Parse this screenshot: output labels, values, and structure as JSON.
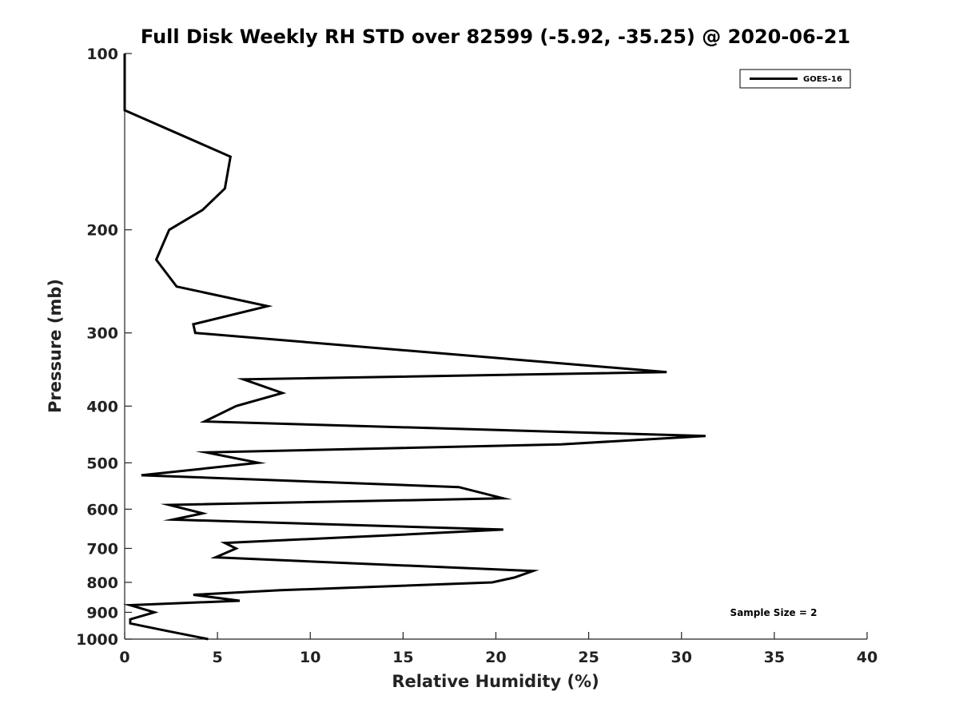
{
  "chart_data": {
    "type": "line",
    "title": "Full Disk Weekly RH STD over 82599 (-5.92, -35.25) @ 2020-06-21",
    "xlabel": "Relative Humidity (%)",
    "ylabel": "Pressure (mb)",
    "xlim": [
      0,
      40
    ],
    "ylim": [
      100,
      1000
    ],
    "y_scale": "log",
    "y_reversed": true,
    "grid": false,
    "xticks": [
      "0",
      "5",
      "10",
      "15",
      "20",
      "25",
      "30",
      "35",
      "40"
    ],
    "yticks": [
      "100",
      "200",
      "300",
      "400",
      "500",
      "600",
      "700",
      "800",
      "900",
      "1000"
    ],
    "legend": {
      "position": "top-right",
      "entries": [
        "GOES-16"
      ]
    },
    "annotation": "Sample Size = 2",
    "series": [
      {
        "name": "GOES-16",
        "color": "#000000",
        "points": [
          [
            0.0,
            100
          ],
          [
            0.0,
            125
          ],
          [
            5.7,
            150
          ],
          [
            5.4,
            170
          ],
          [
            4.2,
            185
          ],
          [
            2.4,
            200
          ],
          [
            1.7,
            225
          ],
          [
            2.8,
            250
          ],
          [
            7.7,
            270
          ],
          [
            3.7,
            290
          ],
          [
            3.8,
            300
          ],
          [
            29.2,
            350
          ],
          [
            6.4,
            360
          ],
          [
            8.5,
            380
          ],
          [
            6.0,
            400
          ],
          [
            4.3,
            425
          ],
          [
            31.3,
            450
          ],
          [
            23.5,
            465
          ],
          [
            4.4,
            480
          ],
          [
            7.2,
            500
          ],
          [
            0.9,
            525
          ],
          [
            18.0,
            550
          ],
          [
            20.4,
            575
          ],
          [
            2.4,
            590
          ],
          [
            4.2,
            610
          ],
          [
            2.6,
            625
          ],
          [
            20.4,
            650
          ],
          [
            14.2,
            665
          ],
          [
            5.4,
            685
          ],
          [
            6.0,
            700
          ],
          [
            4.9,
            725
          ],
          [
            11.3,
            740
          ],
          [
            22.0,
            765
          ],
          [
            21.0,
            785
          ],
          [
            19.8,
            800
          ],
          [
            8.4,
            825
          ],
          [
            3.7,
            840
          ],
          [
            6.2,
            860
          ],
          [
            0.3,
            875
          ],
          [
            1.6,
            900
          ],
          [
            0.3,
            925
          ],
          [
            0.3,
            940
          ],
          [
            1.0,
            950
          ],
          [
            2.4,
            970
          ],
          [
            4.5,
            1000
          ]
        ]
      }
    ]
  }
}
